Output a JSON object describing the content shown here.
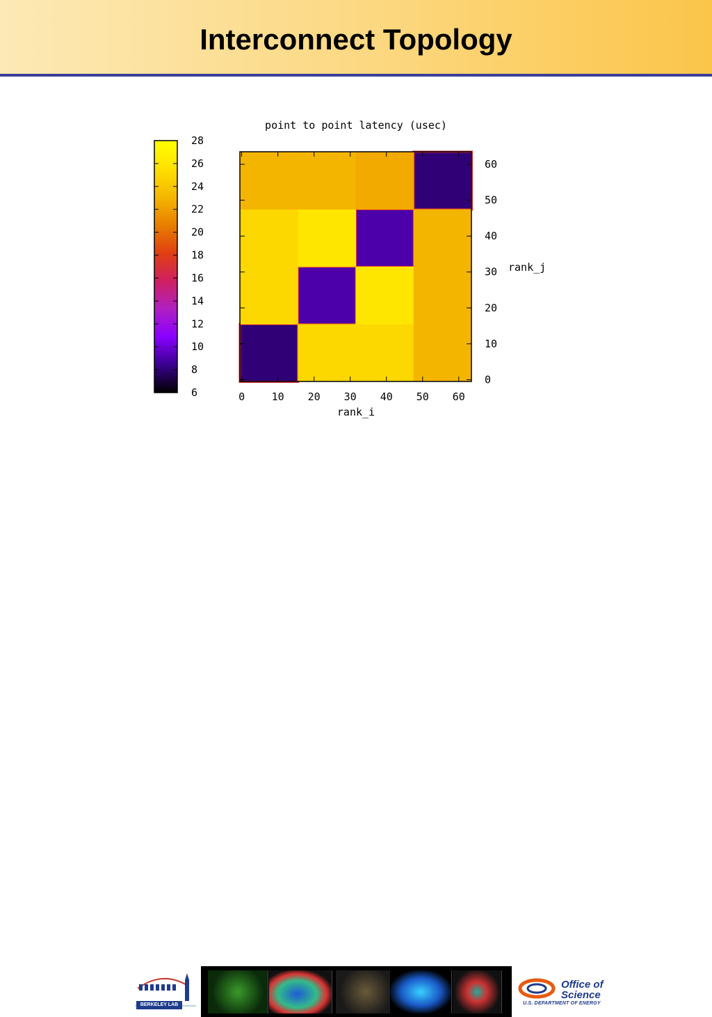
{
  "header": {
    "title": "Interconnect Topology"
  },
  "chart_data": {
    "type": "heatmap",
    "title": "point to point latency (usec)",
    "xlabel": "rank_i",
    "ylabel": "rank_j",
    "xlim": [
      0,
      63
    ],
    "ylim": [
      0,
      63
    ],
    "xticks": [
      0,
      10,
      20,
      30,
      40,
      50,
      60
    ],
    "yticks": [
      0,
      10,
      20,
      30,
      40,
      50,
      60
    ],
    "colorbar": {
      "min": 6,
      "max": 28,
      "ticks": [
        6,
        8,
        10,
        12,
        14,
        16,
        18,
        20,
        22,
        24,
        26,
        28
      ]
    },
    "colormap": [
      "#000000",
      "#3a0090",
      "#8a00ff",
      "#b020c0",
      "#d02060",
      "#e04010",
      "#e88000",
      "#f5b800",
      "#ffe000",
      "#ffff00"
    ],
    "blocks": [
      {
        "x": [
          0,
          15
        ],
        "y": [
          0,
          15
        ],
        "value": 8
      },
      {
        "x": [
          16,
          31
        ],
        "y": [
          16,
          31
        ],
        "value": 9
      },
      {
        "x": [
          32,
          47
        ],
        "y": [
          32,
          47
        ],
        "value": 9
      },
      {
        "x": [
          48,
          63
        ],
        "y": [
          48,
          63
        ],
        "value": 8
      },
      {
        "x": [
          16,
          31
        ],
        "y": [
          0,
          15
        ],
        "value": 25
      },
      {
        "x": [
          32,
          47
        ],
        "y": [
          0,
          15
        ],
        "value": 25
      },
      {
        "x": [
          48,
          63
        ],
        "y": [
          0,
          15
        ],
        "value": 23
      },
      {
        "x": [
          0,
          15
        ],
        "y": [
          16,
          31
        ],
        "value": 25
      },
      {
        "x": [
          32,
          47
        ],
        "y": [
          16,
          31
        ],
        "value": 26
      },
      {
        "x": [
          48,
          63
        ],
        "y": [
          16,
          31
        ],
        "value": 23
      },
      {
        "x": [
          0,
          15
        ],
        "y": [
          32,
          47
        ],
        "value": 25
      },
      {
        "x": [
          16,
          31
        ],
        "y": [
          32,
          47
        ],
        "value": 26
      },
      {
        "x": [
          48,
          63
        ],
        "y": [
          32,
          47
        ],
        "value": 23
      },
      {
        "x": [
          0,
          15
        ],
        "y": [
          48,
          63
        ],
        "value": 23
      },
      {
        "x": [
          16,
          31
        ],
        "y": [
          48,
          63
        ],
        "value": 23
      },
      {
        "x": [
          32,
          47
        ],
        "y": [
          48,
          63
        ],
        "value": 22.5
      }
    ]
  },
  "footer": {
    "left_logo": "BERKELEY LAB",
    "right_logo_name": "Office of Science",
    "right_logo_line1": "Office of",
    "right_logo_line2": "Science",
    "right_logo_dept": "U.S. DEPARTMENT OF ENERGY"
  }
}
